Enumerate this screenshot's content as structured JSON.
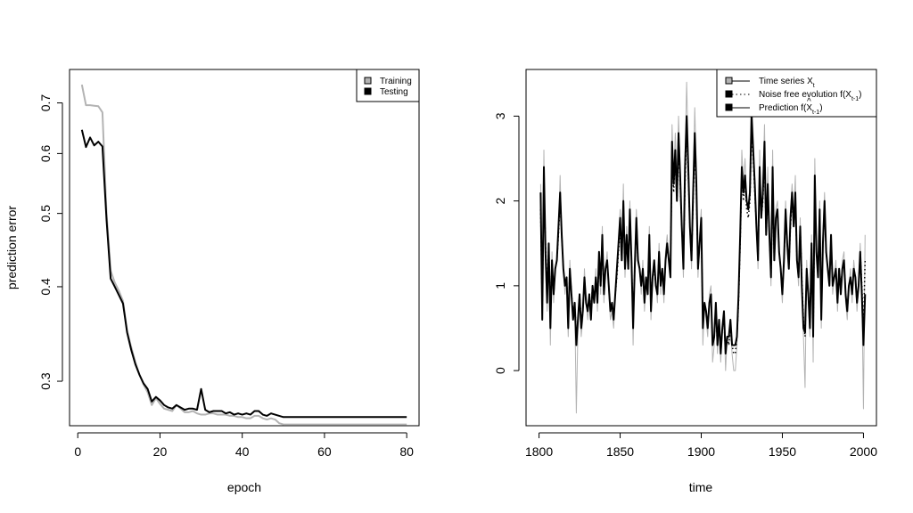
{
  "chart_data": [
    {
      "type": "line",
      "title": "",
      "xlabel": "epoch",
      "ylabel": "prediction error",
      "yscale": "log",
      "xlim": [
        -2,
        83
      ],
      "ylim": [
        0.262,
        0.775
      ],
      "xticks": [
        0,
        20,
        40,
        60,
        80
      ],
      "yticks": [
        0.3,
        0.4,
        0.5,
        0.6,
        0.7
      ],
      "legend_position": "top-right",
      "grid": false,
      "series": [
        {
          "name": "Training",
          "color": "#b3b3b3",
          "x": [
            1,
            2,
            3,
            4,
            5,
            6,
            7,
            8,
            9,
            10,
            11,
            12,
            13,
            14,
            15,
            16,
            17,
            18,
            19,
            20,
            21,
            22,
            23,
            24,
            25,
            26,
            27,
            28,
            29,
            30,
            31,
            32,
            33,
            34,
            35,
            36,
            37,
            38,
            39,
            40,
            41,
            42,
            43,
            44,
            45,
            46,
            47,
            48,
            49,
            50,
            51,
            52,
            53,
            54,
            55,
            56,
            57,
            58,
            59,
            60,
            61,
            62,
            63,
            64,
            65,
            66,
            67,
            68,
            69,
            70,
            71,
            72,
            73,
            74,
            75,
            76,
            77,
            78,
            79,
            80
          ],
          "y": [
            0.74,
            0.695,
            0.695,
            0.694,
            0.693,
            0.68,
            0.5,
            0.42,
            0.405,
            0.395,
            0.383,
            0.35,
            0.333,
            0.318,
            0.306,
            0.297,
            0.29,
            0.279,
            0.285,
            0.28,
            0.276,
            0.275,
            0.274,
            0.279,
            0.276,
            0.273,
            0.273,
            0.274,
            0.272,
            0.271,
            0.271,
            0.272,
            0.272,
            0.271,
            0.271,
            0.271,
            0.27,
            0.27,
            0.269,
            0.269,
            0.268,
            0.268,
            0.27,
            0.27,
            0.268,
            0.267,
            0.268,
            0.267,
            0.264,
            0.263,
            0.263,
            0.263,
            0.263,
            0.263,
            0.263,
            0.263,
            0.263,
            0.263,
            0.263,
            0.263,
            0.263,
            0.263,
            0.263,
            0.263,
            0.263,
            0.263,
            0.263,
            0.263,
            0.263,
            0.263,
            0.263,
            0.263,
            0.263,
            0.263,
            0.263,
            0.263,
            0.263,
            0.263,
            0.263,
            0.263
          ]
        },
        {
          "name": "Testing",
          "color": "#000000",
          "x": [
            1,
            2,
            3,
            4,
            5,
            6,
            7,
            8,
            9,
            10,
            11,
            12,
            13,
            14,
            15,
            16,
            17,
            18,
            19,
            20,
            21,
            22,
            23,
            24,
            25,
            26,
            27,
            28,
            29,
            30,
            31,
            32,
            33,
            34,
            35,
            36,
            37,
            38,
            39,
            40,
            41,
            42,
            43,
            44,
            45,
            46,
            47,
            48,
            49,
            50,
            51,
            52,
            53,
            54,
            55,
            56,
            57,
            58,
            59,
            60,
            61,
            62,
            63,
            64,
            65,
            66,
            67,
            68,
            69,
            70,
            71,
            72,
            73,
            74,
            75,
            76,
            77,
            78,
            79,
            80
          ],
          "y": [
            0.645,
            0.612,
            0.63,
            0.615,
            0.622,
            0.613,
            0.49,
            0.41,
            0.4,
            0.39,
            0.38,
            0.348,
            0.33,
            0.316,
            0.306,
            0.298,
            0.293,
            0.282,
            0.286,
            0.283,
            0.279,
            0.277,
            0.276,
            0.279,
            0.277,
            0.275,
            0.276,
            0.276,
            0.275,
            0.293,
            0.275,
            0.273,
            0.274,
            0.274,
            0.274,
            0.272,
            0.273,
            0.271,
            0.272,
            0.271,
            0.272,
            0.271,
            0.274,
            0.274,
            0.271,
            0.27,
            0.272,
            0.271,
            0.27,
            0.269,
            0.269,
            0.269,
            0.269,
            0.269,
            0.269,
            0.269,
            0.269,
            0.269,
            0.269,
            0.269,
            0.269,
            0.269,
            0.269,
            0.269,
            0.269,
            0.269,
            0.269,
            0.269,
            0.269,
            0.269,
            0.269,
            0.269,
            0.269,
            0.269,
            0.269,
            0.269,
            0.269,
            0.269,
            0.269,
            0.269
          ]
        }
      ]
    },
    {
      "type": "line",
      "title": "",
      "xlabel": "time",
      "ylabel": "",
      "xlim": [
        1792,
        2008
      ],
      "ylim": [
        -0.65,
        3.55
      ],
      "xticks": [
        1800,
        1850,
        1900,
        1950,
        2000
      ],
      "yticks": [
        0,
        1,
        2,
        3
      ],
      "legend_position": "top-right",
      "grid": false,
      "x_start": 1801,
      "x_step": 1,
      "series": [
        {
          "name": "Time series X",
          "name_subscript": "t",
          "color": "#b3b3b3",
          "style": "solid",
          "values": [
            2.2,
            0.6,
            2.6,
            1.2,
            0.7,
            1.5,
            0.3,
            1.4,
            0.8,
            1.2,
            1.3,
            1.6,
            2.3,
            1.6,
            1.2,
            0.9,
            1.1,
            0.4,
            1.3,
            0.9,
            0.6,
            0.8,
            -0.5,
            0.5,
            0.9,
            0.4,
            0.6,
            1.2,
            0.8,
            0.6,
            0.9,
            0.6,
            1.0,
            0.8,
            1.2,
            0.7,
            1.4,
            0.9,
            1.7,
            0.8,
            1.2,
            1.4,
            0.9,
            0.6,
            0.7,
            0.5,
            0.9,
            1.2,
            1.5,
            1.9,
            1.3,
            2.2,
            1.1,
            1.7,
            1.2,
            2.0,
            1.3,
            0.3,
            1.2,
            1.9,
            1.4,
            1.2,
            0.9,
            1.3,
            0.7,
            1.1,
            0.9,
            1.7,
            0.6,
            1.1,
            1.3,
            1.0,
            0.8,
            1.5,
            0.9,
            1.2,
            0.8,
            1.4,
            1.6,
            1.3,
            1.1,
            2.9,
            2.3,
            2.8,
            2.1,
            3.0,
            2.4,
            1.7,
            1.1,
            2.5,
            3.4,
            2.6,
            1.8,
            1.2,
            2.2,
            3.1,
            2.4,
            1.1,
            1.6,
            1.9,
            0.3,
            0.8,
            0.6,
            0.4,
            0.9,
            1.0,
            0.1,
            0.3,
            0.8,
            0.2,
            0.6,
            0.1,
            0.5,
            0.7,
            0.0,
            0.4,
            0.3,
            0.5,
            0.2,
            0.0,
            0.0,
            0.3,
            0.8,
            1.6,
            2.6,
            2.2,
            2.5,
            2.0,
            1.9,
            2.2,
            3.3,
            2.8,
            2.3,
            1.7,
            1.2,
            2.6,
            1.8,
            2.2,
            2.9,
            1.6,
            2.4,
            1.6,
            1.0,
            2.6,
            1.3,
            1.9,
            2.0,
            1.4,
            1.1,
            0.8,
            1.3,
            2.0,
            1.5,
            1.2,
            1.9,
            2.2,
            1.8,
            2.3,
            1.3,
            1.0,
            1.8,
            1.0,
            0.4,
            -0.2,
            1.3,
            0.8,
            0.4,
            1.6,
            0.1,
            2.5,
            1.4,
            1.1,
            2.0,
            0.5,
            1.6,
            2.1,
            1.4,
            1.2,
            1.0,
            1.6,
            0.9,
            1.1,
            1.3,
            0.7,
            1.2,
            0.9,
            1.3,
            1.4,
            0.8,
            0.6,
            1.0,
            1.2,
            0.8,
            1.3,
            1.1,
            0.7,
            1.0,
            1.5,
            0.9,
            -0.45,
            1.6
          ]
        },
        {
          "name": "Noise free evolution f(X",
          "name_subscript": "t-1",
          "name_suffix": ")",
          "color": "#000000",
          "style": "dotted",
          "values": [
            1.9,
            0.7,
            2.2,
            1.5,
            0.9,
            1.5,
            0.6,
            1.3,
            0.9,
            1.2,
            1.3,
            1.6,
            2.0,
            1.6,
            1.2,
            1.0,
            1.1,
            0.6,
            1.2,
            0.9,
            0.7,
            0.8,
            0.4,
            0.6,
            0.9,
            0.6,
            0.7,
            1.1,
            0.8,
            0.7,
            0.9,
            0.7,
            1.0,
            0.8,
            1.1,
            0.8,
            1.3,
            1.0,
            1.5,
            0.9,
            1.2,
            1.3,
            1.0,
            0.7,
            0.8,
            0.6,
            0.9,
            1.1,
            1.4,
            1.7,
            1.3,
            1.9,
            1.2,
            1.6,
            1.2,
            1.8,
            1.3,
            0.6,
            1.2,
            1.7,
            1.3,
            1.2,
            1.0,
            1.2,
            0.8,
            1.1,
            1.0,
            1.5,
            0.8,
            1.1,
            1.2,
            1.0,
            0.9,
            1.4,
            1.0,
            1.2,
            0.9,
            1.3,
            1.5,
            1.3,
            1.2,
            2.5,
            2.1,
            2.5,
            2.0,
            2.6,
            2.2,
            1.7,
            1.3,
            2.2,
            2.8,
            2.3,
            1.7,
            1.3,
            2.0,
            2.6,
            2.1,
            1.2,
            1.5,
            1.7,
            0.6,
            0.8,
            0.7,
            0.5,
            0.8,
            0.9,
            0.3,
            0.4,
            0.7,
            0.3,
            0.6,
            0.2,
            0.5,
            0.6,
            0.2,
            0.4,
            0.3,
            0.5,
            0.3,
            0.2,
            0.2,
            0.4,
            0.8,
            1.5,
            2.3,
            2.0,
            2.2,
            1.9,
            1.8,
            2.0,
            2.8,
            2.5,
            2.1,
            1.7,
            1.3,
            2.3,
            1.8,
            2.0,
            2.5,
            1.6,
            2.1,
            1.6,
            1.1,
            2.2,
            1.3,
            1.8,
            1.9,
            1.4,
            1.2,
            0.9,
            1.3,
            1.8,
            1.5,
            1.2,
            1.7,
            2.0,
            1.7,
            2.0,
            1.3,
            1.1,
            1.7,
            1.1,
            0.6,
            0.4,
            1.2,
            0.9,
            0.6,
            1.5,
            0.4,
            2.1,
            1.4,
            1.2,
            1.8,
            0.7,
            1.5,
            1.9,
            1.4,
            1.2,
            1.1,
            1.5,
            1.0,
            1.1,
            1.2,
            0.8,
            1.2,
            1.0,
            1.2,
            1.3,
            0.9,
            0.7,
            1.0,
            1.1,
            0.9,
            1.2,
            1.1,
            0.8,
            1.0,
            1.4,
            1.0,
            0.5,
            1.3
          ]
        },
        {
          "name": "Prediction f(X",
          "name_hat": true,
          "name_subscript": "t-1",
          "name_suffix": ")",
          "color": "#000000",
          "style": "solid",
          "values": [
            2.1,
            0.6,
            2.4,
            1.4,
            0.8,
            1.5,
            0.5,
            1.3,
            0.9,
            1.2,
            1.3,
            1.7,
            2.1,
            1.6,
            1.2,
            1.0,
            1.1,
            0.5,
            1.2,
            0.9,
            0.6,
            0.8,
            0.3,
            0.6,
            0.9,
            0.5,
            0.7,
            1.1,
            0.8,
            0.7,
            0.9,
            0.6,
            1.0,
            0.8,
            1.1,
            0.8,
            1.4,
            1.0,
            1.6,
            0.9,
            1.2,
            1.3,
            1.0,
            0.7,
            0.8,
            0.6,
            0.9,
            1.2,
            1.5,
            1.8,
            1.3,
            2.0,
            1.2,
            1.6,
            1.2,
            1.9,
            1.3,
            0.5,
            1.2,
            1.8,
            1.3,
            1.2,
            1.0,
            1.2,
            0.8,
            1.1,
            0.9,
            1.6,
            0.7,
            1.1,
            1.3,
            1.0,
            0.9,
            1.4,
            1.0,
            1.2,
            0.9,
            1.3,
            1.5,
            1.3,
            1.1,
            2.7,
            2.2,
            2.6,
            2.0,
            2.8,
            2.3,
            1.7,
            1.2,
            2.4,
            3.0,
            2.4,
            1.7,
            1.3,
            2.1,
            2.8,
            2.2,
            1.2,
            1.5,
            1.8,
            0.5,
            0.8,
            0.7,
            0.5,
            0.8,
            0.9,
            0.3,
            0.4,
            0.8,
            0.3,
            0.6,
            0.2,
            0.5,
            0.7,
            0.2,
            0.4,
            0.4,
            0.6,
            0.3,
            0.3,
            0.3,
            0.4,
            0.9,
            1.6,
            2.4,
            2.1,
            2.3,
            2.0,
            1.9,
            2.1,
            3.0,
            2.6,
            2.2,
            1.7,
            1.3,
            2.4,
            1.8,
            2.1,
            2.7,
            1.6,
            2.2,
            1.6,
            1.1,
            2.4,
            1.3,
            1.8,
            1.9,
            1.4,
            1.2,
            0.9,
            1.3,
            1.9,
            1.5,
            1.2,
            1.8,
            2.1,
            1.7,
            2.1,
            1.3,
            1.1,
            1.7,
            1.0,
            0.5,
            0.45,
            1.2,
            0.9,
            0.5,
            1.5,
            0.4,
            2.3,
            1.4,
            1.1,
            1.9,
            0.6,
            1.5,
            2.0,
            1.4,
            1.2,
            1.0,
            1.6,
            1.0,
            1.1,
            1.2,
            0.8,
            1.2,
            0.9,
            1.2,
            1.3,
            0.9,
            0.7,
            1.0,
            1.1,
            0.9,
            1.2,
            1.1,
            0.8,
            1.0,
            1.4,
            0.9,
            0.3,
            0.9
          ]
        }
      ]
    }
  ]
}
